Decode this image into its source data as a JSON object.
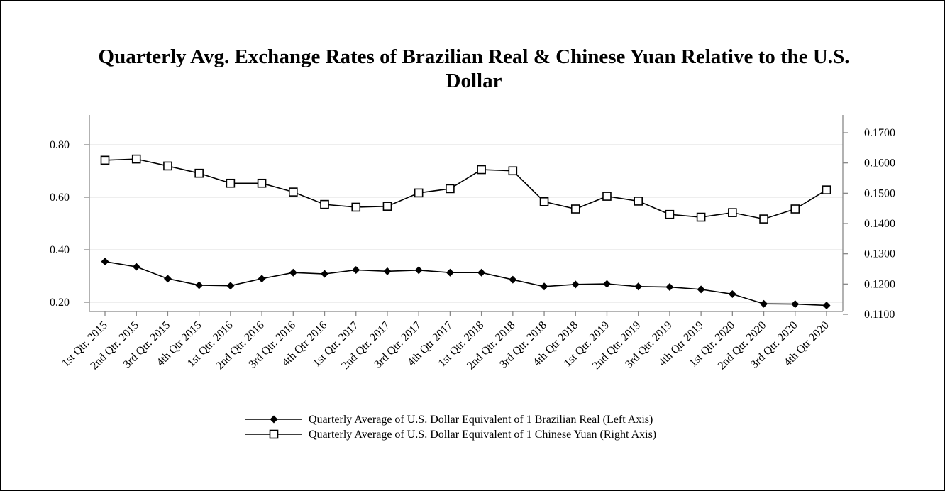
{
  "chart_data": {
    "type": "line",
    "title_lines": [
      "Quarterly Avg. Exchange Rates of Brazilian Real & Chinese Yuan Relative to the U.S.",
      "Dollar"
    ],
    "categories": [
      "1st Qtr. 2015",
      "2nd Qtr. 2015",
      "3rd Qtr. 2015",
      "4th Qtr 2015",
      "1st Qtr. 2016",
      "2nd Qtr. 2016",
      "3rd Qtr. 2016",
      "4th Qtr 2016",
      "1st Qtr. 2017",
      "2nd Qtr. 2017",
      "3rd Qtr. 2017",
      "4th Qtr 2017",
      "1st Qtr. 2018",
      "2nd Qtr. 2018",
      "3rd Qtr. 2018",
      "4th Qtr 2018",
      "1st Qtr. 2019",
      "2nd Qtr. 2019",
      "3rd Qtr. 2019",
      "4th Qtr 2019",
      "1st Qtr. 2020",
      "2nd Qtr. 2020",
      "3rd Qtr. 2020",
      "4th Qtr 2020"
    ],
    "left_axis": {
      "ticks": [
        0.2,
        0.4,
        0.6,
        0.8
      ],
      "tick_labels": [
        "0.20",
        "0.40",
        "0.60",
        "0.80"
      ],
      "gridlines": true
    },
    "right_axis": {
      "ticks": [
        0.11,
        0.12,
        0.13,
        0.14,
        0.15,
        0.16,
        0.17
      ],
      "tick_labels": [
        "0.1100",
        "0.1200",
        "0.1300",
        "0.1400",
        "0.1500",
        "0.1600",
        "0.1700"
      ]
    },
    "series": [
      {
        "name": "Quarterly Average of U.S. Dollar Equivalent of 1 Brazilian Real (Left Axis)",
        "axis": "left",
        "marker": "filled-diamond",
        "color": "#000000",
        "values": [
          0.355,
          0.335,
          0.29,
          0.265,
          0.263,
          0.29,
          0.313,
          0.308,
          0.323,
          0.318,
          0.322,
          0.313,
          0.313,
          0.286,
          0.26,
          0.268,
          0.27,
          0.26,
          0.258,
          0.249,
          0.231,
          0.194,
          0.193,
          0.188
        ]
      },
      {
        "name": "Quarterly Average of U.S. Dollar Equivalent of 1 Chinese Yuan (Right Axis)",
        "axis": "right",
        "marker": "hollow-square",
        "color": "#000000",
        "values": [
          0.1609,
          0.1613,
          0.159,
          0.1566,
          0.1533,
          0.1533,
          0.1504,
          0.1463,
          0.1454,
          0.1457,
          0.1501,
          0.1515,
          0.1578,
          0.1574,
          0.1472,
          0.1448,
          0.149,
          0.1474,
          0.143,
          0.1421,
          0.1436,
          0.1415,
          0.1448,
          0.1511
        ]
      }
    ],
    "legend_position": "bottom-center"
  }
}
